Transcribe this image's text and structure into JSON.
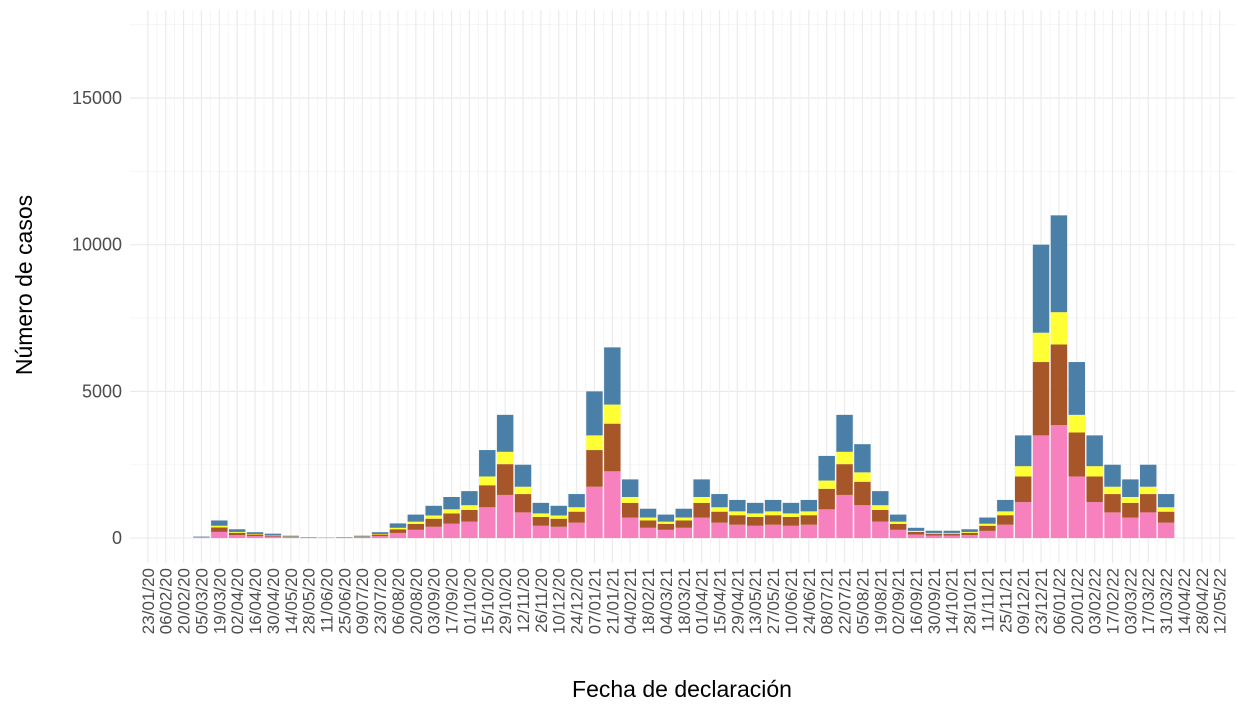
{
  "chart_data": {
    "type": "stacked_bar",
    "xlabel": "Fecha de declaración",
    "ylabel": "Número de casos",
    "x": [
      "05/03/20",
      "19/03/20",
      "02/04/20",
      "16/04/20",
      "30/04/20",
      "14/05/20",
      "28/05/20",
      "11/06/20",
      "25/06/20",
      "09/07/20",
      "23/07/20",
      "06/08/20",
      "20/08/20",
      "03/09/20",
      "17/09/20",
      "01/10/20",
      "15/10/20",
      "29/10/20",
      "12/11/20",
      "26/11/20",
      "10/12/20",
      "24/12/20",
      "07/01/21",
      "21/01/21",
      "04/02/21",
      "18/02/21",
      "04/03/21",
      "18/03/21",
      "01/04/21",
      "15/04/21",
      "29/04/21",
      "13/05/21",
      "27/05/21",
      "10/06/21",
      "24/06/21",
      "08/07/21",
      "22/07/21",
      "05/08/21",
      "19/08/21",
      "02/09/21",
      "16/09/21",
      "30/09/21",
      "14/10/21",
      "28/10/21",
      "11/11/21",
      "25/11/21",
      "09/12/21",
      "23/12/21",
      "06/01/22",
      "20/01/22",
      "03/02/22",
      "17/02/22",
      "03/03/22",
      "17/03/22",
      "31/03/22"
    ],
    "series": [
      {
        "color": "#f781bf",
        "values": [
          18,
          210,
          105,
          70,
          52,
          28,
          10,
          7,
          10,
          28,
          70,
          175,
          280,
          385,
          490,
          560,
          1050,
          1470,
          875,
          420,
          385,
          525,
          1750,
          2275,
          700,
          350,
          280,
          350,
          700,
          525,
          455,
          420,
          455,
          420,
          455,
          980,
          1470,
          1120,
          560,
          280,
          122,
          88,
          88,
          105,
          245,
          455,
          1225,
          3500,
          3850,
          2100,
          1225,
          875,
          700,
          875,
          525
        ]
      },
      {
        "color": "#a65628",
        "values": [
          12,
          150,
          75,
          50,
          38,
          20,
          8,
          5,
          8,
          20,
          50,
          125,
          200,
          275,
          350,
          400,
          750,
          1050,
          625,
          300,
          275,
          375,
          1250,
          1625,
          500,
          250,
          200,
          250,
          500,
          375,
          325,
          300,
          325,
          300,
          325,
          700,
          1050,
          800,
          400,
          200,
          88,
          62,
          62,
          75,
          175,
          325,
          875,
          2500,
          2750,
          1500,
          875,
          625,
          500,
          625,
          375
        ]
      },
      {
        "color": "#ffff33",
        "values": [
          5,
          60,
          30,
          20,
          15,
          8,
          3,
          2,
          3,
          8,
          20,
          50,
          80,
          110,
          140,
          160,
          300,
          420,
          250,
          120,
          110,
          150,
          500,
          650,
          200,
          100,
          80,
          100,
          200,
          150,
          130,
          120,
          130,
          120,
          130,
          280,
          420,
          320,
          160,
          80,
          35,
          25,
          25,
          30,
          70,
          130,
          350,
          1000,
          1100,
          600,
          350,
          250,
          200,
          250,
          150
        ]
      },
      {
        "color": "#4a7fa8",
        "values": [
          15,
          180,
          90,
          60,
          45,
          24,
          9,
          6,
          9,
          24,
          60,
          150,
          240,
          330,
          420,
          480,
          900,
          1260,
          750,
          360,
          330,
          450,
          1500,
          1950,
          600,
          300,
          240,
          300,
          600,
          450,
          390,
          360,
          390,
          360,
          390,
          840,
          1260,
          960,
          480,
          240,
          105,
          75,
          75,
          90,
          210,
          390,
          1050,
          3000,
          3300,
          1800,
          1050,
          750,
          600,
          750,
          450
        ]
      }
    ],
    "xlim": [
      "09/01/20",
      "24/05/22"
    ],
    "xticks": [
      "23/01/20",
      "06/02/20",
      "20/02/20",
      "05/03/20",
      "19/03/20",
      "02/04/20",
      "16/04/20",
      "30/04/20",
      "14/05/20",
      "28/05/20",
      "11/06/20",
      "25/06/20",
      "09/07/20",
      "23/07/20",
      "06/08/20",
      "20/08/20",
      "03/09/20",
      "17/09/20",
      "01/10/20",
      "15/10/20",
      "29/10/20",
      "12/11/20",
      "26/11/20",
      "10/12/20",
      "24/12/20",
      "07/01/21",
      "21/01/21",
      "04/02/21",
      "18/02/21",
      "04/03/21",
      "18/03/21",
      "01/04/21",
      "15/04/21",
      "29/04/21",
      "13/05/21",
      "27/05/21",
      "10/06/21",
      "24/06/21",
      "08/07/21",
      "22/07/21",
      "05/08/21",
      "19/08/21",
      "02/09/21",
      "16/09/21",
      "30/09/21",
      "14/10/21",
      "28/10/21",
      "11/11/21",
      "25/11/21",
      "09/12/21",
      "23/12/21",
      "06/01/22",
      "20/01/22",
      "03/02/22",
      "17/02/22",
      "03/03/22",
      "17/03/22",
      "31/03/22",
      "14/04/22",
      "28/04/22",
      "12/05/22"
    ],
    "ylim": [
      -850,
      18000
    ],
    "yticks": [
      0,
      5000,
      10000,
      15000
    ],
    "grid": true
  }
}
